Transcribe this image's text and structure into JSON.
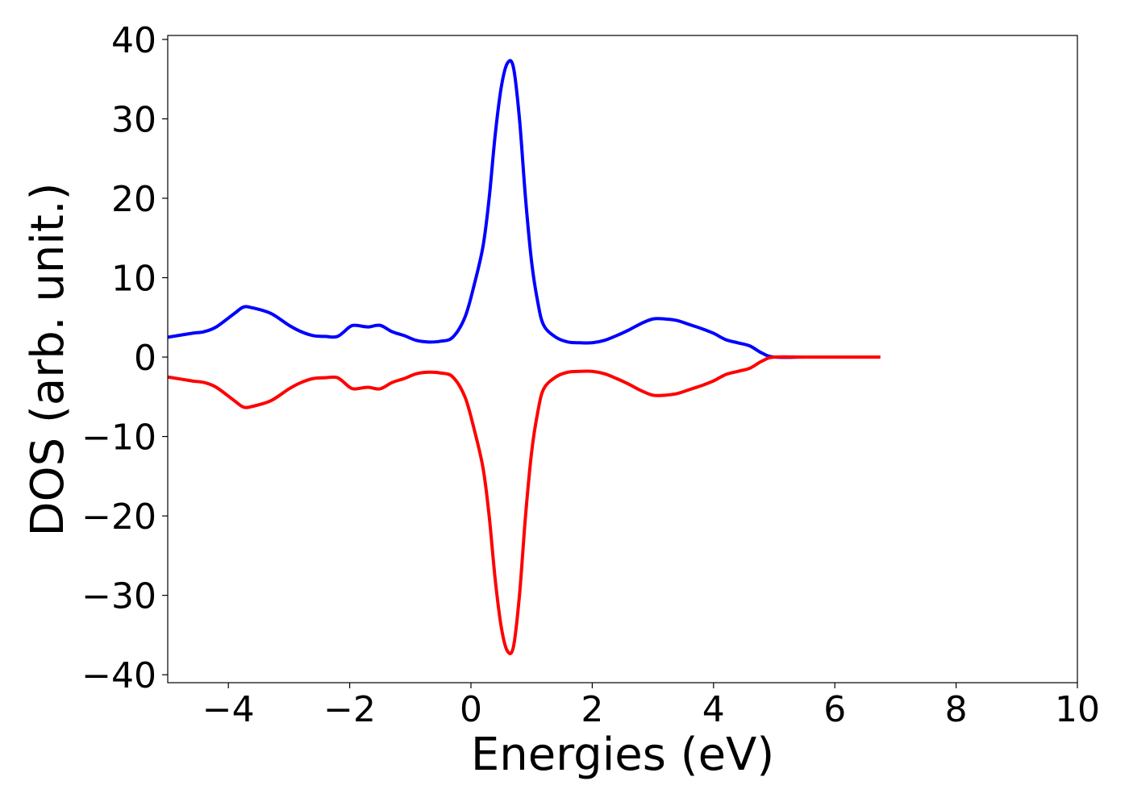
{
  "chart_data": {
    "type": "line",
    "title": "",
    "xlabel": "Energies (eV)",
    "ylabel": "DOS (arb. unit.)",
    "xlim": [
      -5,
      10
    ],
    "ylim": [
      -41,
      40.5
    ],
    "xticks": [
      -4,
      -2,
      0,
      2,
      4,
      6,
      8,
      10
    ],
    "yticks": [
      -40,
      -30,
      -20,
      -10,
      0,
      10,
      20,
      30,
      40
    ],
    "xtick_labels": [
      "−4",
      "−2",
      "0",
      "2",
      "4",
      "6",
      "8",
      "10"
    ],
    "ytick_labels": [
      "−40",
      "−30",
      "−20",
      "−10",
      "0",
      "10",
      "20",
      "30",
      "40"
    ],
    "grid": false,
    "legend": "none",
    "series": [
      {
        "color": "#0000ff",
        "x": [
          -5.0,
          -4.6,
          -4.4,
          -4.2,
          -3.9,
          -3.75,
          -3.6,
          -3.3,
          -3.0,
          -2.8,
          -2.6,
          -2.4,
          -2.2,
          -2.0,
          -1.9,
          -1.7,
          -1.5,
          -1.3,
          -1.1,
          -0.9,
          -0.7,
          -0.5,
          -0.3,
          -0.1,
          0.05,
          0.2,
          0.3,
          0.4,
          0.5,
          0.6,
          0.7,
          0.8,
          0.9,
          1.0,
          1.1,
          1.2,
          1.4,
          1.6,
          1.8,
          2.0,
          2.2,
          2.4,
          2.6,
          2.8,
          3.0,
          3.2,
          3.4,
          3.6,
          3.8,
          4.0,
          4.2,
          4.4,
          4.6,
          4.8,
          5.0,
          5.5,
          6.0,
          6.5,
          6.75
        ],
        "y": [
          2.5,
          3.0,
          3.2,
          3.8,
          5.5,
          6.3,
          6.2,
          5.5,
          4.0,
          3.2,
          2.7,
          2.6,
          2.6,
          3.8,
          4.0,
          3.8,
          4.0,
          3.2,
          2.7,
          2.1,
          1.9,
          2.0,
          2.5,
          5.0,
          9.0,
          14.0,
          20.0,
          28.0,
          34.0,
          37.0,
          36.5,
          30.0,
          20.0,
          12.0,
          7.0,
          4.0,
          2.5,
          1.9,
          1.8,
          1.8,
          2.1,
          2.7,
          3.4,
          4.2,
          4.8,
          4.8,
          4.6,
          4.1,
          3.6,
          3.0,
          2.2,
          1.8,
          1.4,
          0.5,
          0.0,
          0.0,
          0.0,
          0.0,
          0.0
        ]
      },
      {
        "color": "#ff0000",
        "x": [
          -5.0,
          -4.6,
          -4.4,
          -4.2,
          -3.9,
          -3.75,
          -3.6,
          -3.3,
          -3.0,
          -2.8,
          -2.6,
          -2.4,
          -2.2,
          -2.0,
          -1.9,
          -1.7,
          -1.5,
          -1.3,
          -1.1,
          -0.9,
          -0.7,
          -0.5,
          -0.3,
          -0.1,
          0.05,
          0.2,
          0.3,
          0.4,
          0.5,
          0.6,
          0.7,
          0.8,
          0.9,
          1.0,
          1.1,
          1.2,
          1.4,
          1.6,
          1.8,
          2.0,
          2.2,
          2.4,
          2.6,
          2.8,
          3.0,
          3.2,
          3.4,
          3.6,
          3.8,
          4.0,
          4.2,
          4.4,
          4.6,
          4.8,
          5.0,
          5.5,
          6.0,
          6.5,
          6.75
        ],
        "y": [
          -2.5,
          -3.0,
          -3.2,
          -3.8,
          -5.5,
          -6.3,
          -6.2,
          -5.5,
          -4.0,
          -3.2,
          -2.7,
          -2.6,
          -2.6,
          -3.8,
          -4.0,
          -3.8,
          -4.0,
          -3.2,
          -2.7,
          -2.1,
          -1.9,
          -2.0,
          -2.5,
          -5.0,
          -9.0,
          -14.0,
          -20.0,
          -28.0,
          -34.0,
          -37.0,
          -36.5,
          -30.0,
          -20.0,
          -12.0,
          -7.0,
          -4.0,
          -2.5,
          -1.9,
          -1.8,
          -1.8,
          -2.1,
          -2.7,
          -3.4,
          -4.2,
          -4.8,
          -4.8,
          -4.6,
          -4.1,
          -3.6,
          -3.0,
          -2.2,
          -1.8,
          -1.4,
          -0.5,
          0.0,
          0.0,
          0.0,
          0.0,
          0.0
        ]
      }
    ]
  }
}
